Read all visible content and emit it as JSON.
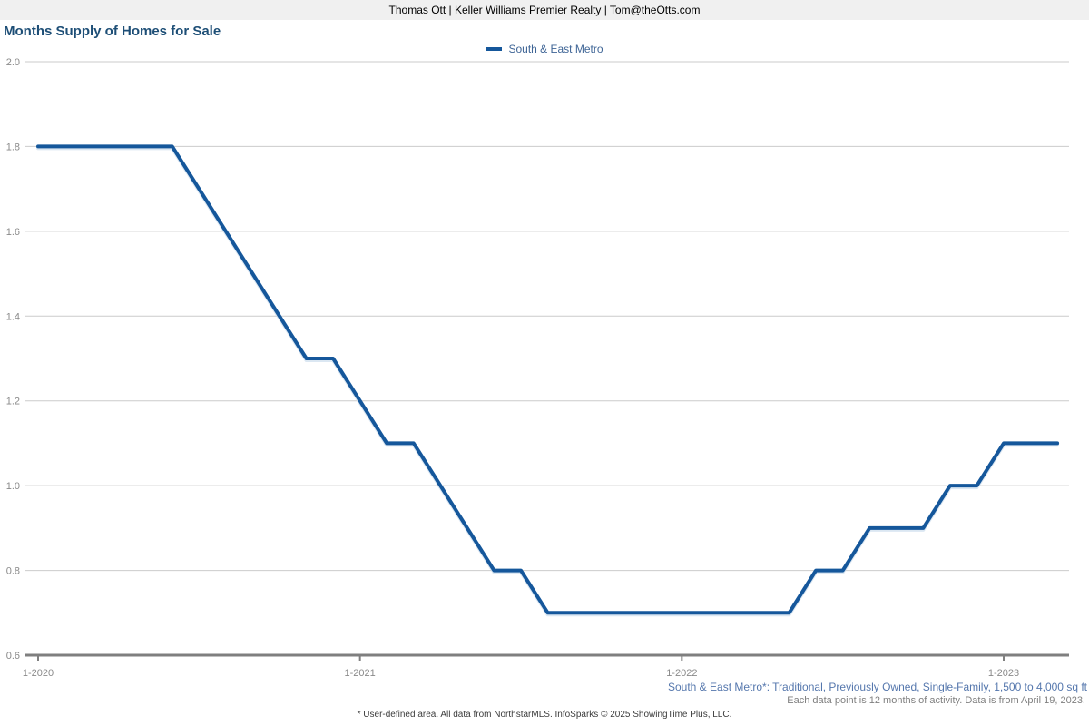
{
  "header": {
    "text": "Thomas Ott | Keller Williams Premier Realty | Tom@theOtts.com"
  },
  "title": "Months Supply of Homes for Sale",
  "legend": {
    "label": "South & East Metro"
  },
  "colors": {
    "line": "#15579b",
    "line_halo": "#ccdded",
    "title": "#1d4e76",
    "legend_text": "#3f6596",
    "gridline": "#cbcbcb",
    "axis": "#7f7f7f",
    "tick_label": "#8a8a8a",
    "header_bg": "#f0f0f0",
    "footnote_blue": "#5577ad",
    "footnote_gray": "#7f7f7f"
  },
  "footnotes": {
    "series_definition": "South & East Metro*: Traditional, Previously Owned, Single-Family, 1,500 to 4,000 sq ft",
    "data_note": "Each data point is 12 months of activity. Data is from April 19, 2023.",
    "footer": "* User-defined area. All data from NorthstarMLS. InfoSparks © 2025 ShowingTime Plus, LLC."
  },
  "chart_data": {
    "type": "line",
    "title": "Months Supply of Homes for Sale",
    "x": [
      "1-2020",
      "2-2020",
      "3-2020",
      "4-2020",
      "5-2020",
      "6-2020",
      "7-2020",
      "8-2020",
      "9-2020",
      "10-2020",
      "11-2020",
      "12-2020",
      "1-2021",
      "2-2021",
      "3-2021",
      "4-2021",
      "5-2021",
      "6-2021",
      "7-2021",
      "8-2021",
      "9-2021",
      "10-2021",
      "11-2021",
      "12-2021",
      "1-2022",
      "2-2022",
      "3-2022",
      "4-2022",
      "5-2022",
      "6-2022",
      "7-2022",
      "8-2022",
      "9-2022",
      "10-2022",
      "11-2022",
      "12-2022",
      "1-2023",
      "2-2023",
      "3-2023"
    ],
    "series": [
      {
        "name": "South & East Metro",
        "values": [
          1.8,
          1.8,
          1.8,
          1.8,
          1.8,
          1.8,
          1.7,
          1.6,
          1.5,
          1.4,
          1.3,
          1.3,
          1.2,
          1.1,
          1.1,
          1.0,
          0.9,
          0.8,
          0.8,
          0.7,
          0.7,
          0.7,
          0.7,
          0.7,
          0.7,
          0.7,
          0.7,
          0.7,
          0.7,
          0.8,
          0.8,
          0.9,
          0.9,
          0.9,
          1.0,
          1.0,
          1.1,
          1.1,
          1.1
        ]
      }
    ],
    "x_tick_labels": [
      "1-2020",
      "1-2021",
      "1-2022",
      "1-2023"
    ],
    "x_tick_month_indices": [
      0,
      12,
      24,
      36
    ],
    "y_ticks": [
      0.6,
      0.8,
      1.0,
      1.2,
      1.4,
      1.6,
      1.8,
      2.0
    ],
    "ylim": [
      0.6,
      2.0
    ],
    "xlabel": "",
    "ylabel": "",
    "grid": true,
    "legend_position": "top-center"
  }
}
